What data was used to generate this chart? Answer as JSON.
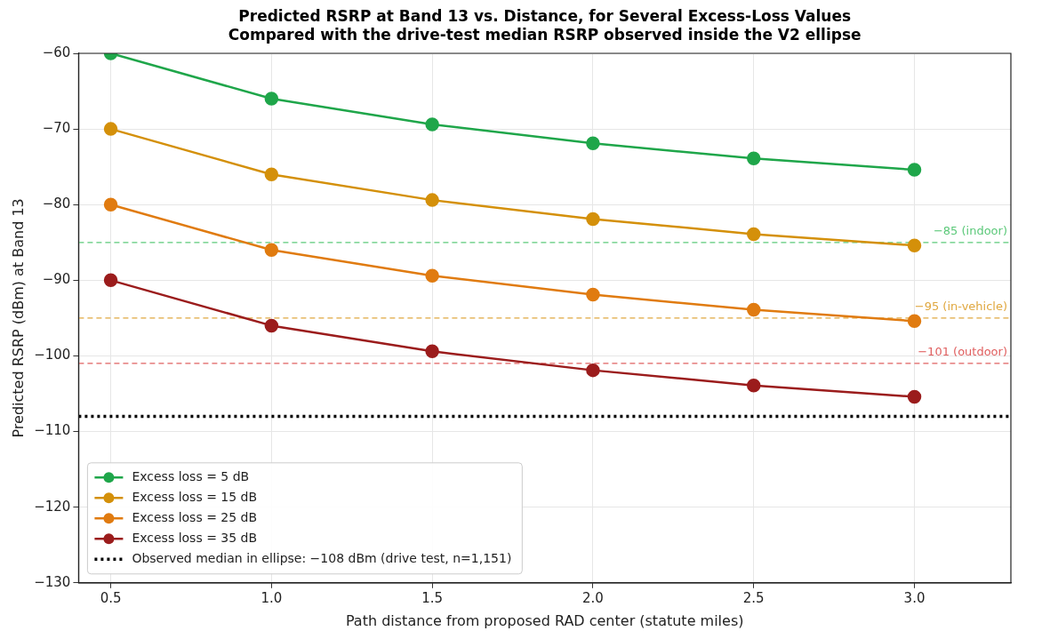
{
  "chart_data": {
    "type": "line",
    "title": "Predicted RSRP at Band 13 vs. Distance, for Several Excess-Loss Values",
    "subtitle": "Compared with the drive-test median RSRP observed inside the V2 ellipse",
    "xlabel": "Path distance from proposed RAD center (statute miles)",
    "ylabel": "Predicted RSRP (dBm) at Band 13",
    "x": [
      0.5,
      1.0,
      1.5,
      2.0,
      2.5,
      3.0
    ],
    "series": [
      {
        "name": "Excess loss = 5 dB",
        "color": "#1fa64a",
        "values": [
          -60,
          -66,
          -69.4,
          -71.9,
          -73.9,
          -75.4
        ]
      },
      {
        "name": "Excess loss = 15 dB",
        "color": "#d4900a",
        "values": [
          -70,
          -76,
          -79.4,
          -81.9,
          -83.9,
          -85.4
        ]
      },
      {
        "name": "Excess loss = 25 dB",
        "color": "#e07b10",
        "values": [
          -80,
          -86,
          -89.4,
          -91.9,
          -93.9,
          -95.4
        ]
      },
      {
        "name": "Excess loss = 35 dB",
        "color": "#9b1c1c",
        "values": [
          -90,
          -96,
          -99.4,
          -101.9,
          -103.9,
          -105.4
        ]
      },
      {
        "name": "Observed median in ellipse: −108 dBm (drive test, n=1,151)",
        "color": "#000000",
        "x": [
          0.4,
          3.3
        ],
        "values": [
          -108,
          -108
        ],
        "marker": "none",
        "line_style": "dotted"
      }
    ],
    "ref_lines": [
      {
        "axis": "y",
        "value": -85,
        "label": "−85 (indoor)",
        "color": "#5cc97a",
        "line_style": "dashed"
      },
      {
        "axis": "y",
        "value": -95,
        "label": "−95 (in-vehicle)",
        "color": "#e0a840",
        "line_style": "dashed"
      },
      {
        "axis": "y",
        "value": -101,
        "label": "−101 (outdoor)",
        "color": "#e06060",
        "line_style": "dashed"
      }
    ],
    "xlim": [
      0.4,
      3.3
    ],
    "ylim": [
      -130,
      -60
    ],
    "xticks": [
      0.5,
      {
        "value": 1,
        "label": "1.0"
      },
      1.5,
      {
        "value": 2,
        "label": "2.0"
      },
      2.5,
      {
        "value": 3,
        "label": "3.0"
      }
    ],
    "yticks": [
      {
        "value": -130,
        "label": "−130"
      },
      {
        "value": -120,
        "label": "−120"
      },
      {
        "value": -110,
        "label": "−110"
      },
      {
        "value": -100,
        "label": "−100"
      },
      {
        "value": -90,
        "label": "−90"
      },
      {
        "value": -80,
        "label": "−80"
      },
      {
        "value": -70,
        "label": "−70"
      },
      {
        "value": -60,
        "label": "−60"
      }
    ],
    "grid": true,
    "legend": "bottom left",
    "marker": "circle",
    "line_style": "solid"
  }
}
